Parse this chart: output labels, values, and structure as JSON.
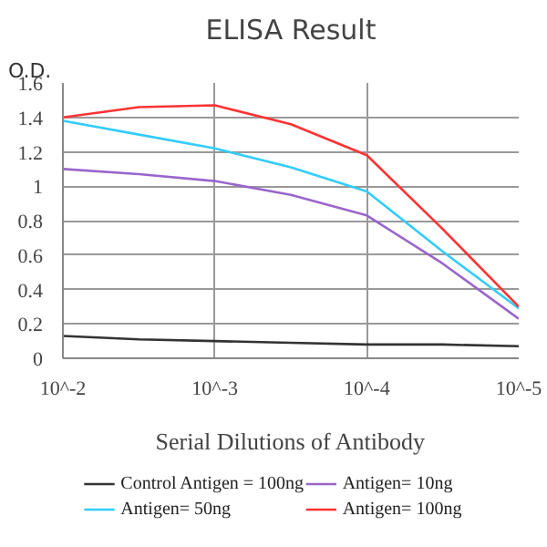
{
  "chart_data": {
    "type": "line",
    "title": "ELISA Result",
    "ylabel": "O.D.",
    "xlabel": "Serial Dilutions of Antibody",
    "x": [
      0.01,
      0.00316,
      0.001,
      0.000316,
      0.0001,
      3.16e-05,
      1e-05
    ],
    "series": [
      {
        "name": "Control Antigen = 100ng",
        "color": "#333333",
        "values": [
          0.13,
          0.11,
          0.1,
          0.09,
          0.08,
          0.08,
          0.07
        ]
      },
      {
        "name": "Antigen= 10ng",
        "color": "#9966cc",
        "values": [
          1.1,
          1.07,
          1.03,
          0.95,
          0.83,
          0.55,
          0.23
        ]
      },
      {
        "name": "Antigen= 50ng",
        "color": "#33ccff",
        "values": [
          1.38,
          1.3,
          1.22,
          1.11,
          0.97,
          0.62,
          0.29
        ]
      },
      {
        "name": "Antigen= 100ng",
        "color": "#ff3333",
        "values": [
          1.4,
          1.46,
          1.47,
          1.36,
          1.18,
          0.75,
          0.3
        ]
      }
    ],
    "log": "x",
    "xlim": [
      0.01,
      1e-05
    ],
    "xticks": [
      {
        "value": 0.01,
        "label": "10^-2"
      },
      {
        "value": 0.001,
        "label": "10^-3"
      },
      {
        "value": 0.0001,
        "label": "10^-4"
      },
      {
        "value": 1e-05,
        "label": "10^-5"
      }
    ],
    "ylim": [
      0,
      1.6
    ],
    "yticks": [
      0,
      {
        "value": 0.2,
        "label": "0.2"
      },
      {
        "value": 0.4,
        "label": "0.4"
      },
      {
        "value": 0.6,
        "label": "0.6"
      },
      {
        "value": 0.8,
        "label": "0.8"
      },
      1,
      {
        "value": 1.2,
        "label": "1.2"
      },
      {
        "value": 1.4,
        "label": "1.4"
      },
      {
        "value": 1.6,
        "label": "1.6"
      }
    ],
    "grid": true,
    "legend": "bottom",
    "marker": "none",
    "line_style": "solid"
  }
}
